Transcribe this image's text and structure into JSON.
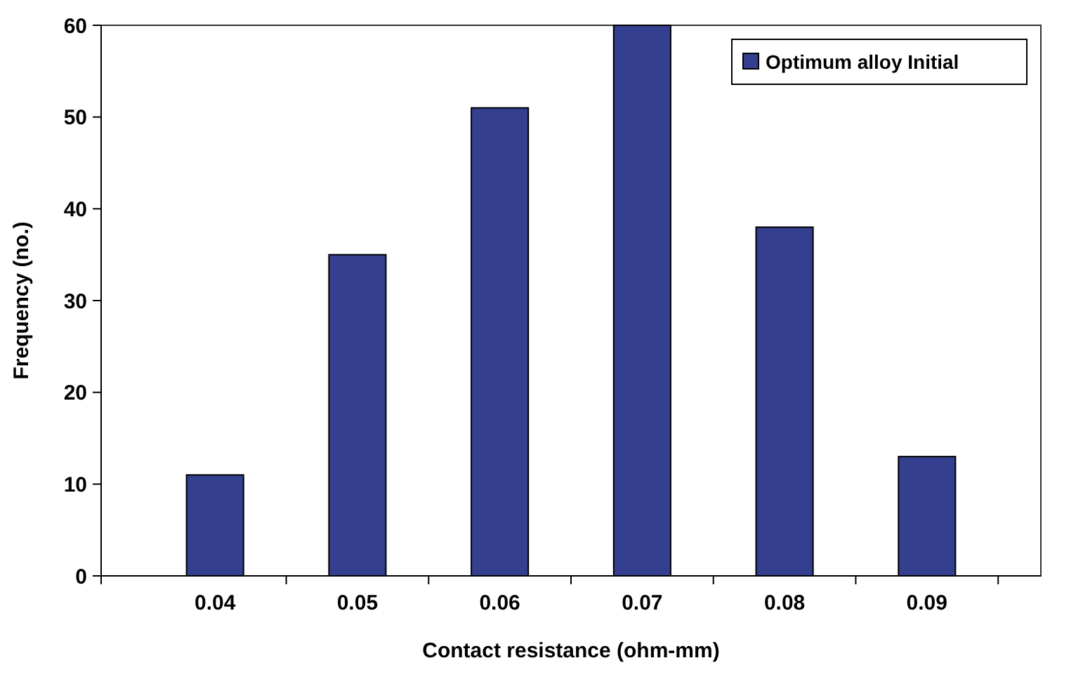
{
  "chart_data": {
    "type": "bar",
    "xlabel": "Contact resistance (ohm-mm)",
    "ylabel": "Frequency (no.)",
    "categories": [
      "0.04",
      "0.05",
      "0.06",
      "0.07",
      "0.08",
      "0.09"
    ],
    "series": [
      {
        "name": "Optimum alloy Initial",
        "color": "#343f8f",
        "values": [
          11,
          35,
          51,
          60,
          38,
          13
        ]
      }
    ],
    "ylim": [
      0,
      60
    ],
    "yticks": [
      0,
      10,
      20,
      30,
      40,
      50,
      60
    ],
    "legend": "top right"
  }
}
